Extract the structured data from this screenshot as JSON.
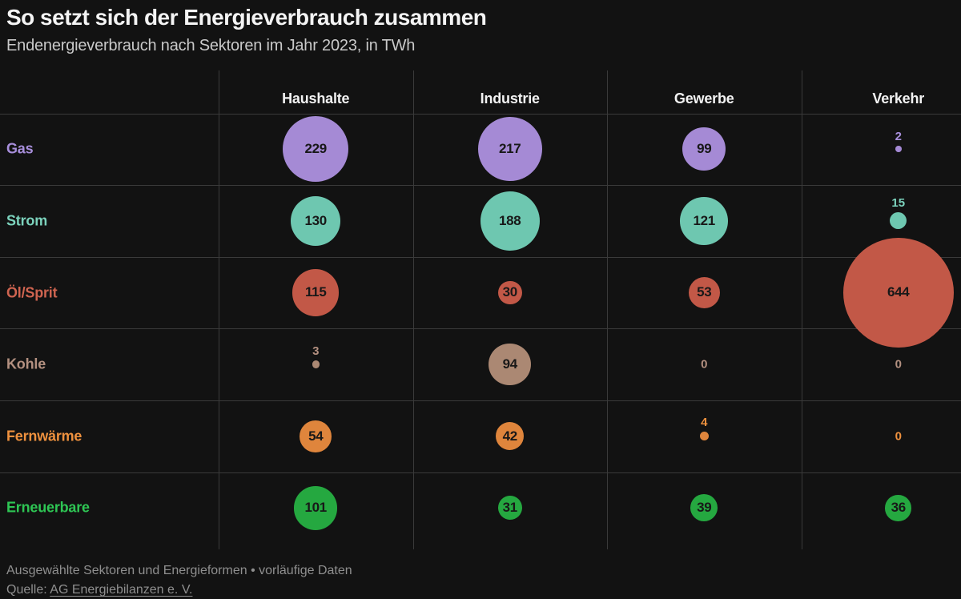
{
  "title": "So setzt sich der Energieverbrauch zusammen",
  "subtitle": "Endenergieverbrauch nach Sektoren im Jahr 2023, in TWh",
  "footer": {
    "note": "Ausgewählte Sektoren und Energieformen • vorläufige Daten",
    "source_prefix": "Quelle: ",
    "source_link": "AG Energiebilanzen e. V."
  },
  "theme": {
    "background": "#121212",
    "grid_line": "#3a3a3a",
    "title_color": "#f4f4f4",
    "subtitle_color": "#c9c9c9",
    "header_color": "#f2f2f2",
    "footer_color": "#8f8f8f",
    "bubble_text_color": "#181818"
  },
  "chart_data": {
    "type": "heatmap",
    "representation": "bubble-matrix",
    "title": "So setzt sich der Energieverbrauch zusammen",
    "subtitle": "Endenergieverbrauch nach Sektoren im Jahr 2023, in TWh",
    "unit": "TWh",
    "columns": [
      "Haushalte",
      "Industrie",
      "Gewerbe",
      "Verkehr"
    ],
    "rows": [
      {
        "label": "Gas",
        "label_color": "#a88fdc",
        "bubble_color": "#a58ad5",
        "values": [
          229,
          217,
          99,
          2
        ]
      },
      {
        "label": "Strom",
        "label_color": "#7cd3bd",
        "bubble_color": "#6ec7b0",
        "values": [
          130,
          188,
          121,
          15
        ]
      },
      {
        "label": "Öl/Sprit",
        "label_color": "#cf6450",
        "bubble_color": "#c25847",
        "values": [
          115,
          30,
          53,
          644
        ]
      },
      {
        "label": "Kohle",
        "label_color": "#b39080",
        "bubble_color": "#ab8873",
        "values": [
          3,
          94,
          0,
          0
        ]
      },
      {
        "label": "Fernwärme",
        "label_color": "#ef913e",
        "bubble_color": "#df853c",
        "values": [
          54,
          42,
          4,
          0
        ]
      },
      {
        "label": "Erneuerbare",
        "label_color": "#2ec654",
        "bubble_color": "#25a840",
        "values": [
          101,
          31,
          39,
          36
        ]
      }
    ],
    "size_encoding": "circle area proportional to value; radius_px = 2.71 * sqrt(value)",
    "legend": "none",
    "grid": true
  }
}
